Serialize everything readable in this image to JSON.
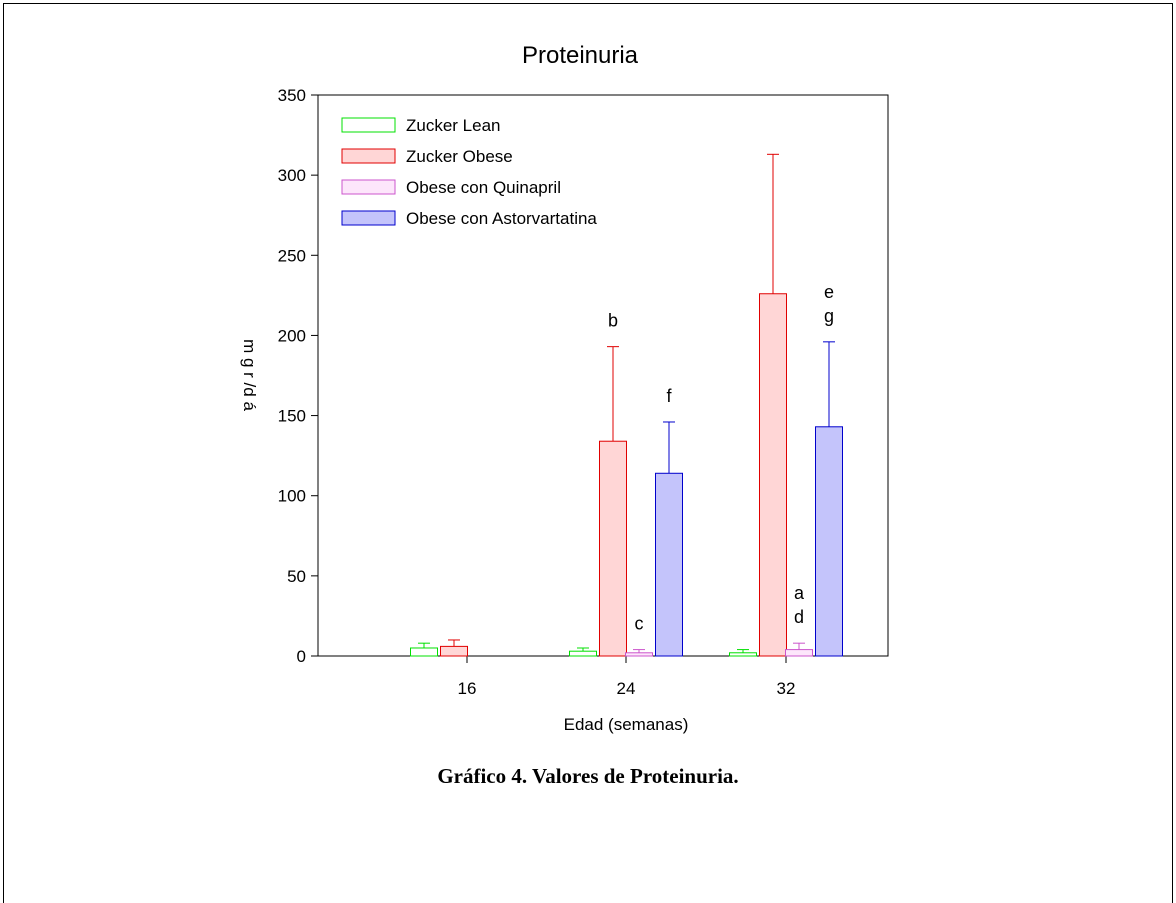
{
  "chart_data": {
    "type": "bar",
    "title": "Proteinuria",
    "xlabel": "Edad (semanas)",
    "ylabel": "m g r /d á",
    "categories": [
      "16",
      "24",
      "32"
    ],
    "ylim": [
      0,
      350
    ],
    "yticks": [
      0,
      50,
      100,
      150,
      200,
      250,
      300,
      350
    ],
    "grid": false,
    "legend_position": "top-left",
    "series": [
      {
        "name": "Zucker Lean",
        "fill": "#ffffff",
        "stroke": "#00e000",
        "values": [
          5,
          3,
          2
        ],
        "errors": [
          3,
          2,
          2
        ]
      },
      {
        "name": "Zucker Obese",
        "fill": "#ffd6d6",
        "stroke": "#e00000",
        "values": [
          6,
          134,
          226
        ],
        "errors": [
          4,
          59,
          87
        ]
      },
      {
        "name": "Obese con Quinapril",
        "fill": "#fde6fb",
        "stroke": "#cc55cc",
        "values": [
          0,
          2,
          4
        ],
        "errors": [
          0,
          2,
          4
        ]
      },
      {
        "name": "Obese con Astorvartatina",
        "fill": "#c4c4fb",
        "stroke": "#0000cc",
        "values": [
          0,
          114,
          143
        ],
        "errors": [
          0,
          32,
          53
        ]
      }
    ],
    "annotations": [
      {
        "text": "b",
        "category": 1,
        "series": 1
      },
      {
        "text": "c",
        "category": 1,
        "series": 2
      },
      {
        "text": "f",
        "category": 1,
        "series": 3
      },
      {
        "text": "a",
        "category": 2,
        "series": 2
      },
      {
        "text": "d",
        "category": 2,
        "series": 2
      },
      {
        "text": "e",
        "category": 2,
        "series": 3
      },
      {
        "text": "g",
        "category": 2,
        "series": 3
      }
    ]
  },
  "caption": "Gráfico 4. Valores de Proteinuria."
}
